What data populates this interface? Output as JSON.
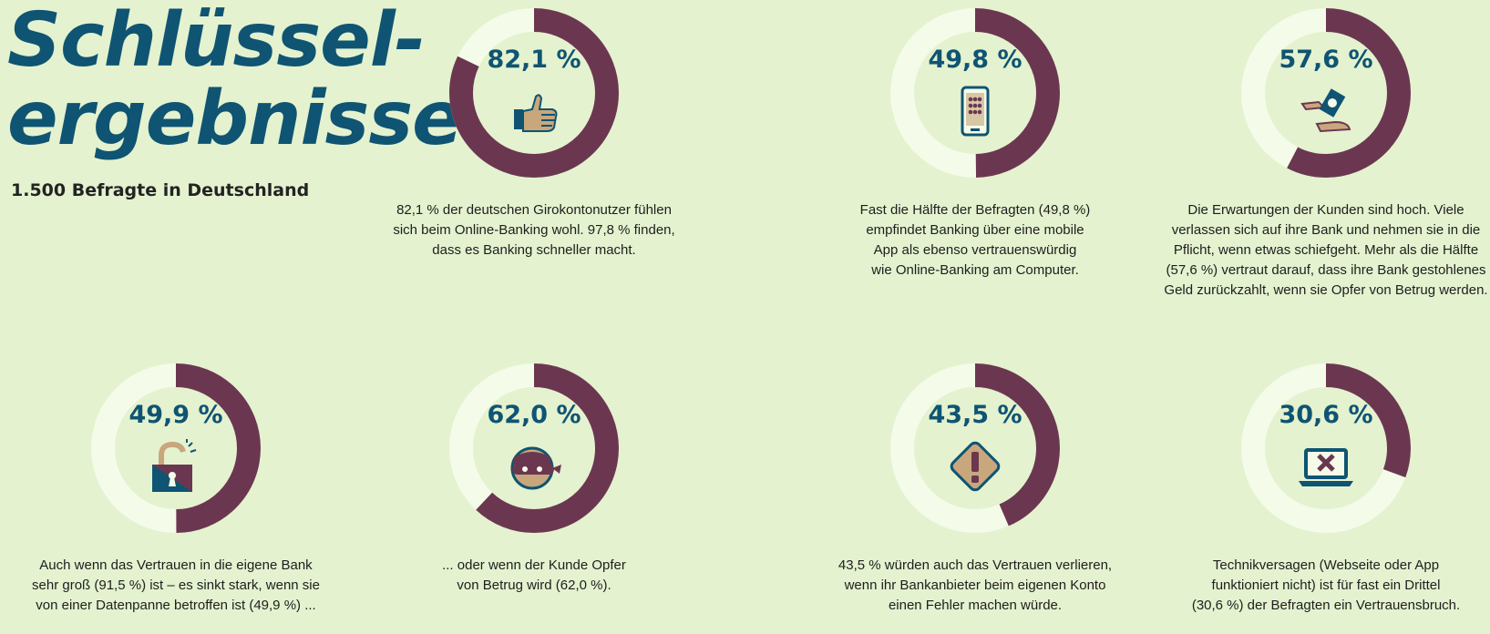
{
  "header": {
    "title_line1": "Schlüssel-",
    "title_line2": "ergebnisse",
    "subtitle": "1.500 Befragte in Deutschland"
  },
  "colors": {
    "arc": "#6b3750",
    "track": "#f4fbe8",
    "accent": "#0f5472",
    "background": "#e4f2cf"
  },
  "chart_data": [
    {
      "type": "pie",
      "value": 82.1,
      "label": "82,1 %",
      "icon": "thumbs-up-icon",
      "caption": [
        "82,1 % der deutschen Girokontonutzer fühlen",
        "sich beim Online-Banking wohl. 97,8 % finden,",
        "dass es Banking schneller macht."
      ]
    },
    {
      "type": "pie",
      "value": 49.8,
      "label": "49,8 %",
      "icon": "smartphone-icon",
      "caption": [
        "Fast die Hälfte der Befragten (49,8 %)",
        "empfindet Banking über eine mobile",
        "App als ebenso vertrauenswürdig",
        "wie Online-Banking am Computer."
      ]
    },
    {
      "type": "pie",
      "value": 57.6,
      "label": "57,6 %",
      "icon": "money-hands-icon",
      "caption": [
        "Die Erwartungen der Kunden sind hoch. Viele",
        "verlassen sich auf ihre Bank und nehmen sie in die",
        "Pflicht, wenn etwas schiefgeht. Mehr als die Hälfte",
        "(57,6 %) vertraut darauf, dass ihre Bank gestohlenes",
        "Geld zurückzahlt, wenn sie Opfer von Betrug werden."
      ]
    },
    {
      "type": "pie",
      "value": 49.9,
      "label": "49,9 %",
      "icon": "broken-lock-icon",
      "caption": [
        "Auch wenn das Vertrauen in die eigene Bank",
        "sehr groß (91,5 %) ist – es sinkt stark, wenn sie",
        "von einer Datenpanne betroffen ist (49,9 %) ..."
      ]
    },
    {
      "type": "pie",
      "value": 62.0,
      "label": "62,0 %",
      "icon": "masked-thief-icon",
      "caption": [
        "... oder wenn der Kunde Opfer",
        "von Betrug wird (62,0 %)."
      ]
    },
    {
      "type": "pie",
      "value": 43.5,
      "label": "43,5 %",
      "icon": "warning-sign-icon",
      "caption": [
        "43,5 % würden auch das Vertrauen verlieren,",
        "wenn ihr Bankanbieter beim eigenen Konto",
        "einen Fehler machen würde."
      ]
    },
    {
      "type": "pie",
      "value": 30.6,
      "label": "30,6 %",
      "icon": "laptop-error-icon",
      "caption": [
        "Technikversagen (Webseite oder App",
        "funktioniert nicht) ist für fast ein Drittel",
        "(30,6 %) der Befragten ein Vertrauensbruch."
      ]
    }
  ]
}
